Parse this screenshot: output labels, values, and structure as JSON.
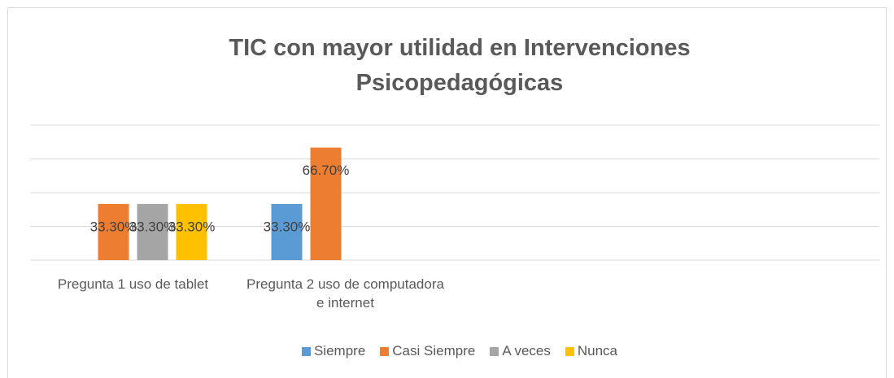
{
  "chart_data": {
    "type": "bar",
    "title": "TIC con mayor utilidad en Intervenciones Psicopedagógicas",
    "categories": [
      "Pregunta 1 uso de tablet",
      "Pregunta 2 uso de computadora e internet",
      null,
      null
    ],
    "series": [
      {
        "name": "Siempre",
        "color": "#5b9bd5",
        "values": [
          null,
          33.3,
          null,
          null
        ],
        "value_labels": [
          null,
          "33.30%",
          null,
          null
        ]
      },
      {
        "name": "Casi Siempre",
        "color": "#ed7d31",
        "values": [
          33.3,
          66.7,
          null,
          null
        ],
        "value_labels": [
          "33.30%",
          "66.70%",
          null,
          null
        ]
      },
      {
        "name": "A veces",
        "color": "#a5a5a5",
        "values": [
          33.3,
          null,
          null,
          null
        ],
        "value_labels": [
          "33.30%",
          null,
          null,
          null
        ]
      },
      {
        "name": "Nunca",
        "color": "#ffc000",
        "values": [
          33.3,
          null,
          null,
          null
        ],
        "value_labels": [
          "33.30%",
          null,
          null,
          null
        ]
      }
    ],
    "ylim": [
      0,
      80
    ],
    "yticks": [
      0,
      20,
      40,
      60,
      80
    ],
    "grid": true,
    "y_tick_labels": false,
    "legend": "bottom"
  }
}
